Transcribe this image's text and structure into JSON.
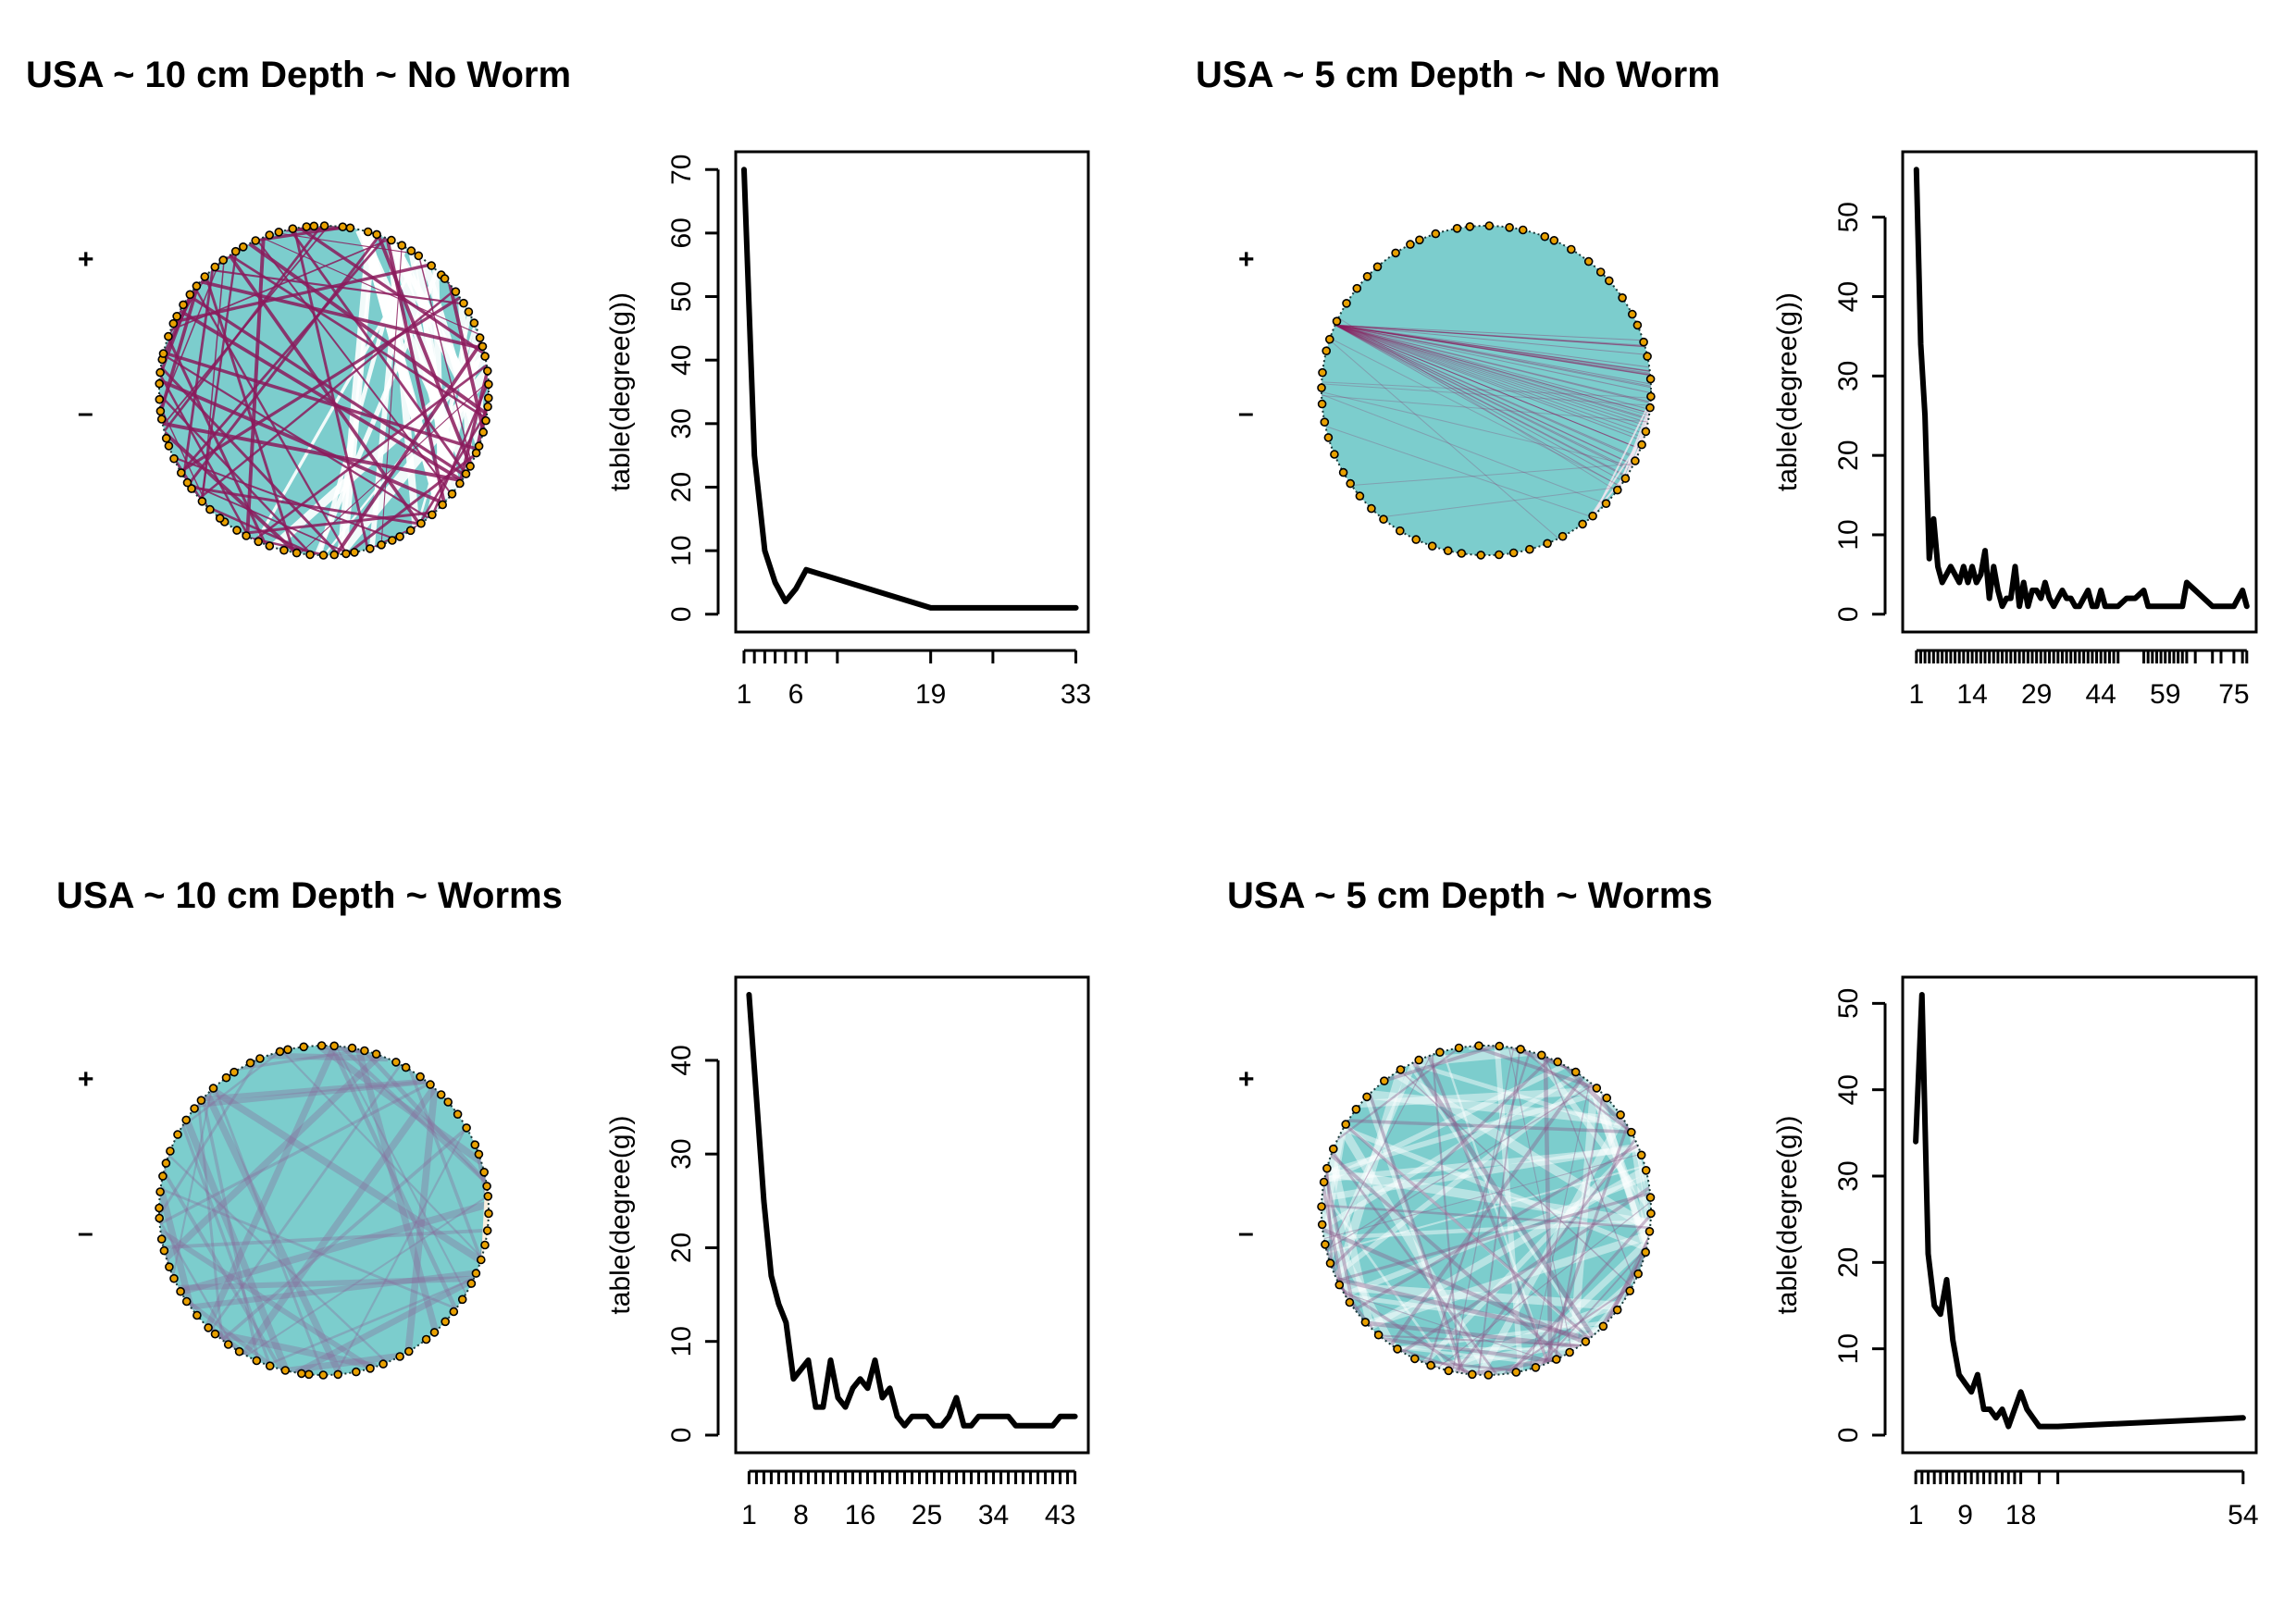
{
  "colors": {
    "network_fill": "#7ccdcd",
    "positive_edge": "#8b1a5c",
    "node_fill": "#e8a000",
    "node_stroke": "#000000",
    "axis": "#000000",
    "series": "#000000"
  },
  "panels": [
    {
      "title": "USA ~ 10 cm Depth ~ No Worm",
      "legend": {
        "plus": "+",
        "minus": "–"
      },
      "network": {
        "style": "dense-magenta",
        "node_count": 84
      }
    },
    {
      "title": "USA ~ 5 cm Depth ~ No Worm",
      "legend": {
        "plus": "+",
        "minus": "–"
      },
      "network": {
        "style": "hub-left",
        "node_count": 60
      }
    },
    {
      "title": "USA ~ 10 cm Depth ~ Worms",
      "legend": {
        "plus": "+",
        "minus": "–"
      },
      "network": {
        "style": "light-purple",
        "node_count": 70
      }
    },
    {
      "title": "USA ~ 5 cm Depth ~ Worms",
      "legend": {
        "plus": "+",
        "minus": "–"
      },
      "network": {
        "style": "pale-mesh",
        "node_count": 50
      }
    }
  ],
  "chart_data": [
    {
      "type": "line",
      "ylabel": "table(degree(g))",
      "xlabel": "",
      "xlim": [
        0.2,
        34.2
      ],
      "ylim": [
        -2.8,
        72.8
      ],
      "xticks": [
        1,
        2,
        3,
        4,
        5,
        6,
        7,
        10,
        19,
        25,
        33
      ],
      "xtick_labels": [
        "1",
        "6",
        "19",
        "33"
      ],
      "xtick_label_values": [
        1,
        6,
        19,
        33
      ],
      "yticks": [
        0,
        10,
        20,
        30,
        40,
        50,
        60,
        70
      ],
      "x": [
        1,
        2,
        3,
        4,
        5,
        6,
        7,
        19,
        25,
        33
      ],
      "y": [
        70,
        25,
        10,
        5,
        2,
        4,
        7,
        1,
        1,
        1
      ]
    },
    {
      "type": "line",
      "ylabel": "table(degree(g))",
      "xlabel": "",
      "xlim": [
        -2.2,
        80.2
      ],
      "ylim": [
        -2.24,
        58.24
      ],
      "xticks": [
        1,
        2,
        3,
        4,
        5,
        6,
        7,
        8,
        9,
        10,
        11,
        12,
        13,
        14,
        15,
        16,
        17,
        18,
        19,
        20,
        21,
        22,
        23,
        24,
        25,
        26,
        27,
        28,
        29,
        30,
        31,
        32,
        33,
        34,
        35,
        36,
        37,
        38,
        39,
        40,
        41,
        42,
        43,
        44,
        45,
        46,
        47,
        48,
        54,
        55,
        56,
        57,
        58,
        59,
        60,
        61,
        62,
        63,
        64,
        66,
        70,
        72,
        75,
        77,
        78
      ],
      "xtick_labels": [
        "1",
        "14",
        "29",
        "44",
        "59",
        "75"
      ],
      "xtick_label_values": [
        1,
        14,
        29,
        44,
        59,
        75
      ],
      "yticks": [
        0,
        10,
        20,
        30,
        40,
        50
      ],
      "x": [
        1,
        2,
        3,
        4,
        5,
        6,
        7,
        8,
        9,
        10,
        11,
        12,
        13,
        14,
        15,
        16,
        17,
        18,
        19,
        20,
        21,
        22,
        23,
        24,
        25,
        26,
        27,
        28,
        29,
        30,
        31,
        32,
        33,
        34,
        35,
        36,
        37,
        38,
        39,
        40,
        41,
        42,
        43,
        44,
        45,
        48,
        50,
        52,
        54,
        55,
        56,
        57,
        58,
        59,
        60,
        61,
        62,
        63,
        64,
        66,
        70,
        72,
        75,
        77,
        78
      ],
      "y": [
        56,
        34,
        25,
        7,
        12,
        6,
        4,
        5,
        6,
        5,
        4,
        6,
        4,
        6,
        4,
        5,
        8,
        2,
        6,
        3,
        1,
        2,
        2,
        6,
        1,
        4,
        1,
        3,
        3,
        2,
        4,
        2,
        1,
        2,
        3,
        2,
        2,
        1,
        1,
        2,
        3,
        1,
        1,
        3,
        1,
        1,
        2,
        2,
        3,
        1,
        1,
        1,
        1,
        1,
        1,
        1,
        1,
        1,
        4,
        3,
        1,
        1,
        1,
        3,
        1
      ]
    },
    {
      "type": "line",
      "ylabel": "table(degree(g))",
      "xlabel": "",
      "xlim": [
        -0.8,
        46.8
      ],
      "ylim": [
        -1.88,
        48.88
      ],
      "xticks": [
        1,
        2,
        3,
        4,
        5,
        6,
        7,
        8,
        9,
        10,
        11,
        12,
        13,
        14,
        15,
        16,
        17,
        18,
        19,
        20,
        21,
        22,
        23,
        24,
        25,
        26,
        27,
        28,
        29,
        30,
        31,
        32,
        33,
        34,
        35,
        36,
        37,
        38,
        39,
        40,
        41,
        42,
        43,
        44,
        45
      ],
      "xtick_labels": [
        "1",
        "8",
        "16",
        "25",
        "34",
        "43"
      ],
      "xtick_label_values": [
        1,
        8,
        16,
        25,
        34,
        43
      ],
      "yticks": [
        0,
        10,
        20,
        30,
        40
      ],
      "x": [
        1,
        2,
        3,
        4,
        5,
        6,
        7,
        8,
        9,
        10,
        11,
        12,
        13,
        14,
        15,
        16,
        17,
        18,
        19,
        20,
        21,
        22,
        23,
        24,
        25,
        26,
        27,
        28,
        29,
        30,
        31,
        32,
        33,
        34,
        35,
        36,
        37,
        38,
        39,
        40,
        41,
        42,
        43,
        44,
        45
      ],
      "y": [
        47,
        36,
        25,
        17,
        14,
        12,
        6,
        7,
        8,
        3,
        3,
        8,
        4,
        3,
        5,
        6,
        5,
        8,
        4,
        5,
        2,
        1,
        2,
        2,
        2,
        1,
        1,
        2,
        4,
        1,
        1,
        2,
        2,
        2,
        2,
        2,
        1,
        1,
        1,
        1,
        1,
        1,
        2,
        2,
        2
      ]
    },
    {
      "type": "line",
      "ylabel": "table(degree(g))",
      "xlabel": "",
      "xlim": [
        -1.12,
        56.12
      ],
      "ylim": [
        -2.04,
        53.04
      ],
      "xticks": [
        1,
        2,
        3,
        4,
        5,
        6,
        7,
        8,
        9,
        10,
        11,
        12,
        13,
        14,
        15,
        16,
        17,
        18,
        21,
        24,
        54
      ],
      "xtick_labels": [
        "1",
        "9",
        "18",
        "54"
      ],
      "xtick_label_values": [
        1,
        9,
        18,
        54
      ],
      "yticks": [
        0,
        10,
        20,
        30,
        40,
        50
      ],
      "x": [
        1,
        2,
        3,
        4,
        5,
        6,
        7,
        8,
        9,
        10,
        11,
        12,
        13,
        14,
        15,
        16,
        17,
        18,
        19,
        20,
        21,
        24,
        54
      ],
      "y": [
        34,
        51,
        21,
        15,
        14,
        18,
        11,
        7,
        6,
        5,
        7,
        3,
        3,
        2,
        3,
        1,
        3,
        5,
        3,
        2,
        1,
        1,
        2
      ]
    }
  ]
}
